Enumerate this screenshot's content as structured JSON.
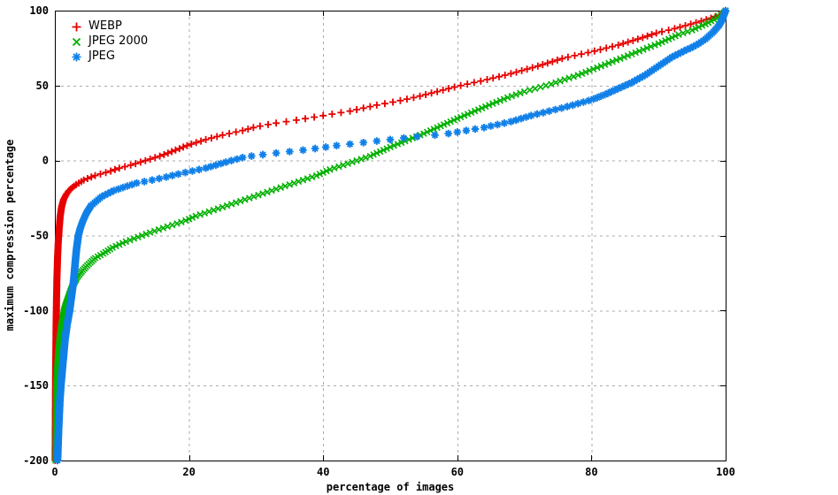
{
  "chart_data": {
    "type": "scatter",
    "title": "",
    "xlabel": "percentage of images",
    "ylabel": "maximum compression percentage",
    "xlim": [
      0,
      100
    ],
    "ylim": [
      -200,
      100
    ],
    "xticks": [
      0,
      20,
      40,
      60,
      80,
      100
    ],
    "yticks": [
      100,
      50,
      0,
      -50,
      -100,
      -150,
      -200
    ],
    "grid": true,
    "grid_color": "#ababab",
    "legend_position": "top-left-inside",
    "sampling_note": "each series is a dense percentile curve; markers occur at every 1 unit of compression percentage, x interpolated from the curve points below",
    "series": [
      {
        "name": "WEBP",
        "marker": "plus",
        "color": "#e60000",
        "curve": [
          [
            0.05,
            -200
          ],
          [
            0.1,
            -150
          ],
          [
            0.15,
            -125
          ],
          [
            0.2,
            -105
          ],
          [
            0.3,
            -80
          ],
          [
            0.4,
            -65
          ],
          [
            0.5,
            -55
          ],
          [
            0.65,
            -45
          ],
          [
            0.8,
            -37
          ],
          [
            1.0,
            -31
          ],
          [
            1.3,
            -26
          ],
          [
            1.7,
            -22.5
          ],
          [
            2.2,
            -19.5
          ],
          [
            3,
            -16.5
          ],
          [
            4.3,
            -13
          ],
          [
            6,
            -10
          ],
          [
            8,
            -7.5
          ],
          [
            9.6,
            -5
          ],
          [
            11.3,
            -3
          ],
          [
            13.5,
            0
          ],
          [
            16,
            3.5
          ],
          [
            18,
            7
          ],
          [
            20,
            10.5
          ],
          [
            22.5,
            14
          ],
          [
            25,
            17
          ],
          [
            28,
            20
          ],
          [
            30,
            22.5
          ],
          [
            33,
            25
          ],
          [
            36,
            27
          ],
          [
            40,
            30
          ],
          [
            44,
            33
          ],
          [
            48,
            37
          ],
          [
            51,
            39.5
          ],
          [
            54,
            42.5
          ],
          [
            57,
            46
          ],
          [
            60,
            49.5
          ],
          [
            64,
            53.5
          ],
          [
            68,
            58
          ],
          [
            72,
            63
          ],
          [
            76,
            68.5
          ],
          [
            80,
            72.5
          ],
          [
            84,
            77
          ],
          [
            88,
            82.5
          ],
          [
            90,
            85.5
          ],
          [
            92,
            87.5
          ],
          [
            94,
            90
          ],
          [
            96,
            92.5
          ],
          [
            97.5,
            94.5
          ],
          [
            98.8,
            96.5
          ],
          [
            99.5,
            98
          ],
          [
            100,
            100
          ]
        ]
      },
      {
        "name": "JPEG 2000",
        "marker": "cross",
        "color": "#00b000",
        "curve": [
          [
            0.1,
            -200
          ],
          [
            0.15,
            -175
          ],
          [
            0.2,
            -150
          ],
          [
            0.3,
            -140
          ],
          [
            0.45,
            -130
          ],
          [
            0.65,
            -120
          ],
          [
            0.95,
            -110
          ],
          [
            1.35,
            -100
          ],
          [
            1.7,
            -95
          ],
          [
            2.1,
            -90
          ],
          [
            2.5,
            -85
          ],
          [
            3.3,
            -78
          ],
          [
            4.0,
            -74
          ],
          [
            4.6,
            -71
          ],
          [
            5.3,
            -68
          ],
          [
            6.0,
            -65
          ],
          [
            7.2,
            -62
          ],
          [
            7.9,
            -60
          ],
          [
            8.6,
            -58
          ],
          [
            9.6,
            -56
          ],
          [
            10.6,
            -54
          ],
          [
            11.8,
            -52
          ],
          [
            13.0,
            -50
          ],
          [
            14.2,
            -48
          ],
          [
            15.5,
            -46
          ],
          [
            16.8,
            -44
          ],
          [
            18.2,
            -42
          ],
          [
            19.5,
            -40
          ],
          [
            21,
            -37
          ],
          [
            23,
            -34
          ],
          [
            25,
            -31
          ],
          [
            27,
            -28
          ],
          [
            29,
            -25
          ],
          [
            31,
            -22
          ],
          [
            33,
            -19
          ],
          [
            35,
            -16
          ],
          [
            37,
            -13
          ],
          [
            39,
            -10
          ],
          [
            41,
            -6
          ],
          [
            43,
            -3
          ],
          [
            45,
            0
          ],
          [
            47,
            3
          ],
          [
            50,
            9
          ],
          [
            52.5,
            13.5
          ],
          [
            55,
            18
          ],
          [
            57.5,
            23
          ],
          [
            60,
            28
          ],
          [
            62.5,
            32.8
          ],
          [
            65,
            37.5
          ],
          [
            67.5,
            42
          ],
          [
            70,
            46
          ],
          [
            74,
            51
          ],
          [
            78,
            57
          ],
          [
            82,
            64
          ],
          [
            86,
            71
          ],
          [
            90,
            78
          ],
          [
            93,
            84
          ],
          [
            95,
            87
          ],
          [
            97,
            91
          ],
          [
            98.5,
            94.5
          ],
          [
            99.5,
            97.5
          ],
          [
            100,
            100
          ]
        ]
      },
      {
        "name": "JPEG",
        "marker": "asterisk",
        "color": "#1080e8",
        "curve": [
          [
            0.4,
            -200
          ],
          [
            0.55,
            -180
          ],
          [
            0.75,
            -160
          ],
          [
            0.9,
            -150
          ],
          [
            1.1,
            -140
          ],
          [
            1.3,
            -130
          ],
          [
            1.5,
            -120
          ],
          [
            1.8,
            -110
          ],
          [
            2.2,
            -100
          ],
          [
            2.5,
            -90
          ],
          [
            2.8,
            -80
          ],
          [
            3.0,
            -70
          ],
          [
            3.2,
            -60
          ],
          [
            3.5,
            -50
          ],
          [
            3.8,
            -45
          ],
          [
            4.2,
            -40
          ],
          [
            4.7,
            -35
          ],
          [
            5.4,
            -30
          ],
          [
            6.2,
            -27
          ],
          [
            7.0,
            -24
          ],
          [
            7.9,
            -22
          ],
          [
            8.8,
            -20
          ],
          [
            9.8,
            -18.5
          ],
          [
            10.8,
            -17
          ],
          [
            12.2,
            -15
          ],
          [
            14.5,
            -13
          ],
          [
            16.6,
            -11
          ],
          [
            18.4,
            -9
          ],
          [
            20.5,
            -7
          ],
          [
            22.5,
            -5
          ],
          [
            24,
            -3
          ],
          [
            25.5,
            -1
          ],
          [
            26.3,
            0
          ],
          [
            28,
            2
          ],
          [
            30,
            3.5
          ],
          [
            34,
            5.5
          ],
          [
            38,
            7.5
          ],
          [
            42,
            10
          ],
          [
            46,
            12
          ],
          [
            50,
            14
          ],
          [
            54,
            16
          ],
          [
            58,
            17.5
          ],
          [
            60,
            19
          ],
          [
            64,
            22
          ],
          [
            68,
            26
          ],
          [
            71,
            30
          ],
          [
            73.7,
            33
          ],
          [
            76,
            35.5
          ],
          [
            78,
            38
          ],
          [
            80,
            40.5
          ],
          [
            82,
            44
          ],
          [
            84,
            48
          ],
          [
            85,
            50
          ],
          [
            86,
            52
          ],
          [
            88,
            57
          ],
          [
            90,
            63
          ],
          [
            92,
            69
          ],
          [
            94,
            73.5
          ],
          [
            95,
            75.5
          ],
          [
            96,
            78
          ],
          [
            97,
            81
          ],
          [
            98,
            85
          ],
          [
            99,
            90
          ],
          [
            99.5,
            94
          ],
          [
            100,
            100
          ]
        ]
      }
    ]
  }
}
